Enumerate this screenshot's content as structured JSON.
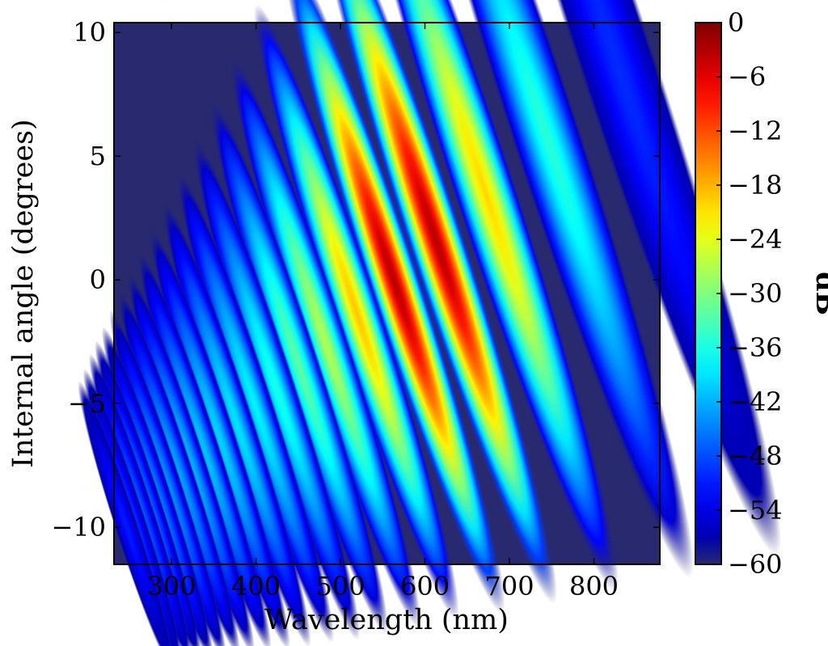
{
  "chart_data": {
    "type": "heatmap",
    "title": "",
    "xlabel": "Wavelength (nm)",
    "ylabel": "Internal angle (degrees)",
    "xlim": [
      232,
      878
    ],
    "ylim": [
      -11.5,
      10.4
    ],
    "xticks": [
      300,
      400,
      500,
      600,
      700,
      800
    ],
    "yticks": [
      10,
      5,
      0,
      -5,
      -10
    ],
    "xtick_labels": [
      "300",
      "400",
      "500",
      "600",
      "700",
      "800"
    ],
    "ytick_labels": [
      "10",
      "5",
      "0",
      "−5",
      "−10"
    ],
    "colorbar": {
      "label": "dB",
      "range": [
        -60,
        0
      ],
      "ticks": [
        0,
        -6,
        -12,
        -18,
        -24,
        -30,
        -36,
        -42,
        -48,
        -54,
        -60
      ],
      "tick_labels": [
        "0",
        "−6",
        "−12",
        "−18",
        "−24",
        "−30",
        "−36",
        "−42",
        "−48",
        "−54",
        "−60"
      ],
      "colormap": "jet"
    },
    "background_db": -60,
    "spots": [
      {
        "x": 828,
        "y": 8.7,
        "peak_db": -50
      },
      {
        "x": 744,
        "y": 5.8,
        "peak_db": -35
      },
      {
        "x": 672,
        "y": 3.5,
        "peak_db": -20
      },
      {
        "x": 613,
        "y": 1.6,
        "peak_db": -3
      },
      {
        "x": 563,
        "y": 0.0,
        "peak_db": -3
      },
      {
        "x": 519,
        "y": -1.3,
        "peak_db": -19
      },
      {
        "x": 482,
        "y": -2.5,
        "peak_db": -27
      },
      {
        "x": 451,
        "y": -3.5,
        "peak_db": -32
      },
      {
        "x": 424,
        "y": -4.4,
        "peak_db": -36
      },
      {
        "x": 399,
        "y": -5.1,
        "peak_db": -38
      },
      {
        "x": 377,
        "y": -5.8,
        "peak_db": -39
      },
      {
        "x": 357,
        "y": -6.4,
        "peak_db": -40
      },
      {
        "x": 339,
        "y": -6.9,
        "peak_db": -41
      },
      {
        "x": 323,
        "y": -7.4,
        "peak_db": -42
      },
      {
        "x": 309,
        "y": -7.8,
        "peak_db": -43
      },
      {
        "x": 296,
        "y": -8.3,
        "peak_db": -44
      },
      {
        "x": 284,
        "y": -8.7,
        "peak_db": -45
      },
      {
        "x": 273,
        "y": -9.0,
        "peak_db": -46
      },
      {
        "x": 264,
        "y": -9.3,
        "peak_db": -47
      },
      {
        "x": 255,
        "y": -9.7,
        "peak_db": -49
      },
      {
        "x": 247,
        "y": -10.0,
        "peak_db": -51
      }
    ]
  },
  "colors": {
    "background": "#28296f",
    "jet_stops": [
      "#00007f",
      "#0000ff",
      "#007fff",
      "#00ffff",
      "#7fff7f",
      "#ffff00",
      "#ff7f00",
      "#ff0000",
      "#7f0000"
    ]
  }
}
